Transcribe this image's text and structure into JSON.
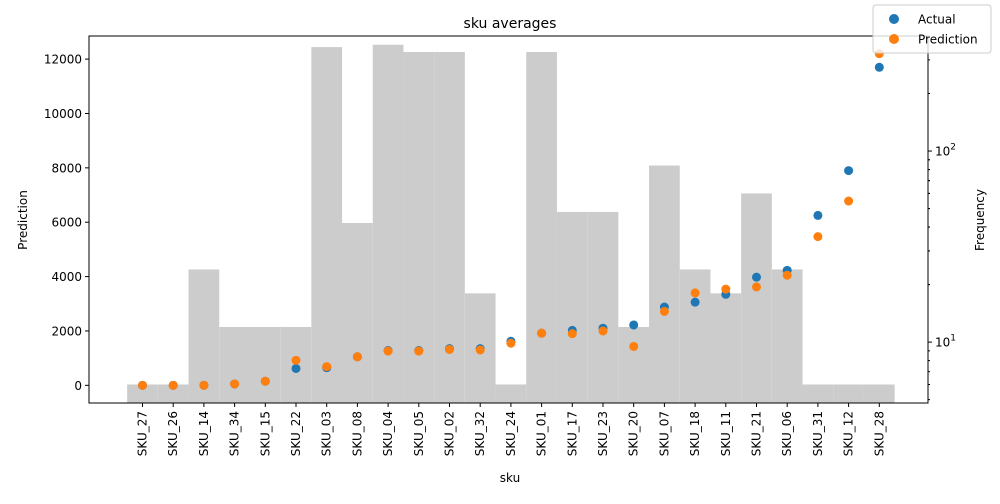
{
  "chart_data": {
    "type": "bar",
    "title": "sku averages",
    "xlabel": "sku",
    "ylabel": "Prediction",
    "y2label": "Frequency",
    "categories": [
      "SKU_27",
      "SKU_26",
      "SKU_14",
      "SKU_34",
      "SKU_15",
      "SKU_22",
      "SKU_03",
      "SKU_08",
      "SKU_04",
      "SKU_05",
      "SKU_02",
      "SKU_32",
      "SKU_24",
      "SKU_01",
      "SKU_17",
      "SKU_23",
      "SKU_20",
      "SKU_07",
      "SKU_18",
      "SKU_11",
      "SKU_21",
      "SKU_06",
      "SKU_31",
      "SKU_12",
      "SKU_28"
    ],
    "ylim": [
      -650,
      12850
    ],
    "yticks": [
      0,
      2000,
      4000,
      6000,
      8000,
      10000,
      12000
    ],
    "y2scale": "log",
    "y2lim": [
      4.8,
      400
    ],
    "y2ticks": [
      {
        "value": 10,
        "label": "10",
        "exp": "1"
      },
      {
        "value": 100,
        "label": "10",
        "exp": "2"
      }
    ],
    "frequency": [
      6,
      6,
      24,
      12,
      12,
      12,
      350,
      42,
      360,
      330,
      330,
      18,
      6,
      330,
      48,
      48,
      12,
      84,
      24,
      18,
      60,
      24,
      6,
      6,
      6
    ],
    "series": [
      {
        "name": "Actual",
        "color": "#1f77b4",
        "values": [
          0,
          0,
          0,
          50,
          150,
          620,
          650,
          1050,
          1280,
          1280,
          1350,
          1350,
          1620,
          1920,
          2020,
          2100,
          2220,
          2880,
          3060,
          3350,
          3980,
          4230,
          6250,
          7900,
          11700
        ]
      },
      {
        "name": "Prediction",
        "color": "#ff7f0e",
        "values": [
          0,
          0,
          0,
          50,
          150,
          920,
          690,
          1050,
          1260,
          1260,
          1320,
          1300,
          1550,
          1920,
          1900,
          2000,
          1430,
          2720,
          3400,
          3540,
          3620,
          4050,
          5470,
          6780,
          12200
        ]
      }
    ],
    "bar_color": "#cccccc",
    "legend_position": "top-right",
    "grid": false
  }
}
